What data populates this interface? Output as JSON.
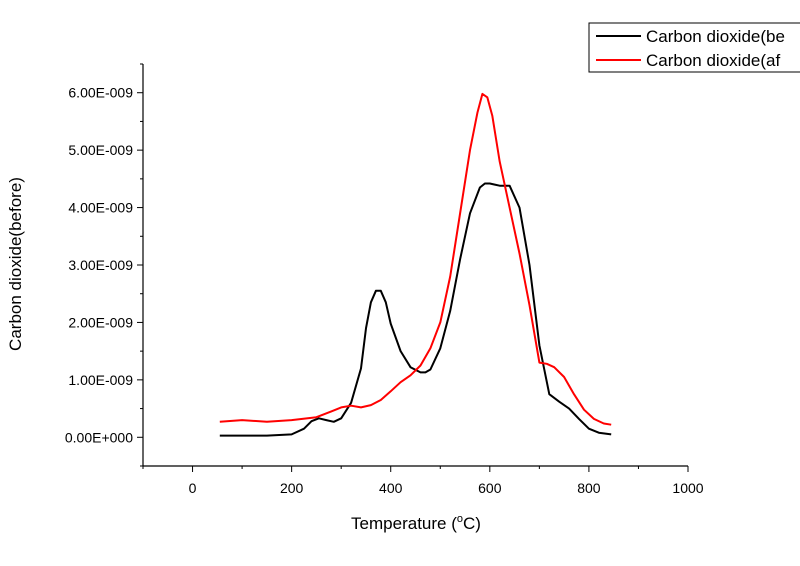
{
  "chart_data": {
    "type": "line",
    "title": "",
    "xlabel": "Temperature (",
    "xlabel_sup": "o",
    "xlabel_unit": "C)",
    "ylabel": "Carbon dioxide(before)",
    "xlim": [
      -100,
      1000
    ],
    "ylim": [
      -5e-10,
      6.5e-09
    ],
    "x_ticks": [
      0,
      200,
      400,
      600,
      800,
      1000
    ],
    "x_tick_labels": [
      "0",
      "200",
      "400",
      "600",
      "800",
      "1000"
    ],
    "y_ticks": [
      0,
      1e-09,
      2e-09,
      3e-09,
      4e-09,
      5e-09,
      6e-09
    ],
    "y_tick_labels": [
      "0.00E+000",
      "1.00E-009",
      "2.00E-009",
      "3.00E-009",
      "4.00E-009",
      "5.00E-009",
      "6.00E-009"
    ],
    "grid": false,
    "legend_position": "top-right",
    "series": [
      {
        "name": "Carbon dioxide(be",
        "color": "#000000",
        "x": [
          55,
          100,
          150,
          200,
          225,
          240,
          255,
          270,
          285,
          300,
          320,
          340,
          350,
          360,
          370,
          380,
          390,
          400,
          420,
          440,
          460,
          470,
          480,
          500,
          520,
          540,
          560,
          580,
          590,
          600,
          610,
          620,
          640,
          660,
          680,
          700,
          720,
          740,
          760,
          780,
          800,
          820,
          845
        ],
        "values": [
          3e-11,
          3e-11,
          3e-11,
          5e-11,
          1.5e-10,
          2.8e-10,
          3.3e-10,
          3e-10,
          2.7e-10,
          3.3e-10,
          6e-10,
          1.2e-09,
          1.9e-09,
          2.35e-09,
          2.55e-09,
          2.55e-09,
          2.35e-09,
          1.98e-09,
          1.5e-09,
          1.22e-09,
          1.13e-09,
          1.13e-09,
          1.18e-09,
          1.55e-09,
          2.2e-09,
          3.1e-09,
          3.9e-09,
          4.35e-09,
          4.42e-09,
          4.42e-09,
          4.4e-09,
          4.38e-09,
          4.38e-09,
          4e-09,
          3e-09,
          1.6e-09,
          7.5e-10,
          6.2e-10,
          5e-10,
          3.2e-10,
          1.5e-10,
          8e-11,
          5e-11
        ]
      },
      {
        "name": "Carbon dioxide(af",
        "color": "#ff0000",
        "x": [
          55,
          100,
          150,
          200,
          250,
          280,
          300,
          320,
          340,
          360,
          380,
          400,
          420,
          440,
          460,
          480,
          500,
          520,
          540,
          560,
          575,
          585,
          595,
          605,
          620,
          640,
          660,
          680,
          700,
          715,
          730,
          750,
          770,
          790,
          810,
          830,
          845
        ],
        "values": [
          2.7e-10,
          3e-10,
          2.7e-10,
          3e-10,
          3.5e-10,
          4.5e-10,
          5.2e-10,
          5.5e-10,
          5.2e-10,
          5.6e-10,
          6.5e-10,
          8e-10,
          9.6e-10,
          1.08e-09,
          1.25e-09,
          1.55e-09,
          2e-09,
          2.8e-09,
          3.9e-09,
          5e-09,
          5.65e-09,
          5.98e-09,
          5.92e-09,
          5.6e-09,
          4.8e-09,
          4e-09,
          3.2e-09,
          2.3e-09,
          1.3e-09,
          1.28e-09,
          1.22e-09,
          1.05e-09,
          7.5e-10,
          4.8e-10,
          3.2e-10,
          2.4e-10,
          2.2e-10
        ]
      }
    ]
  }
}
